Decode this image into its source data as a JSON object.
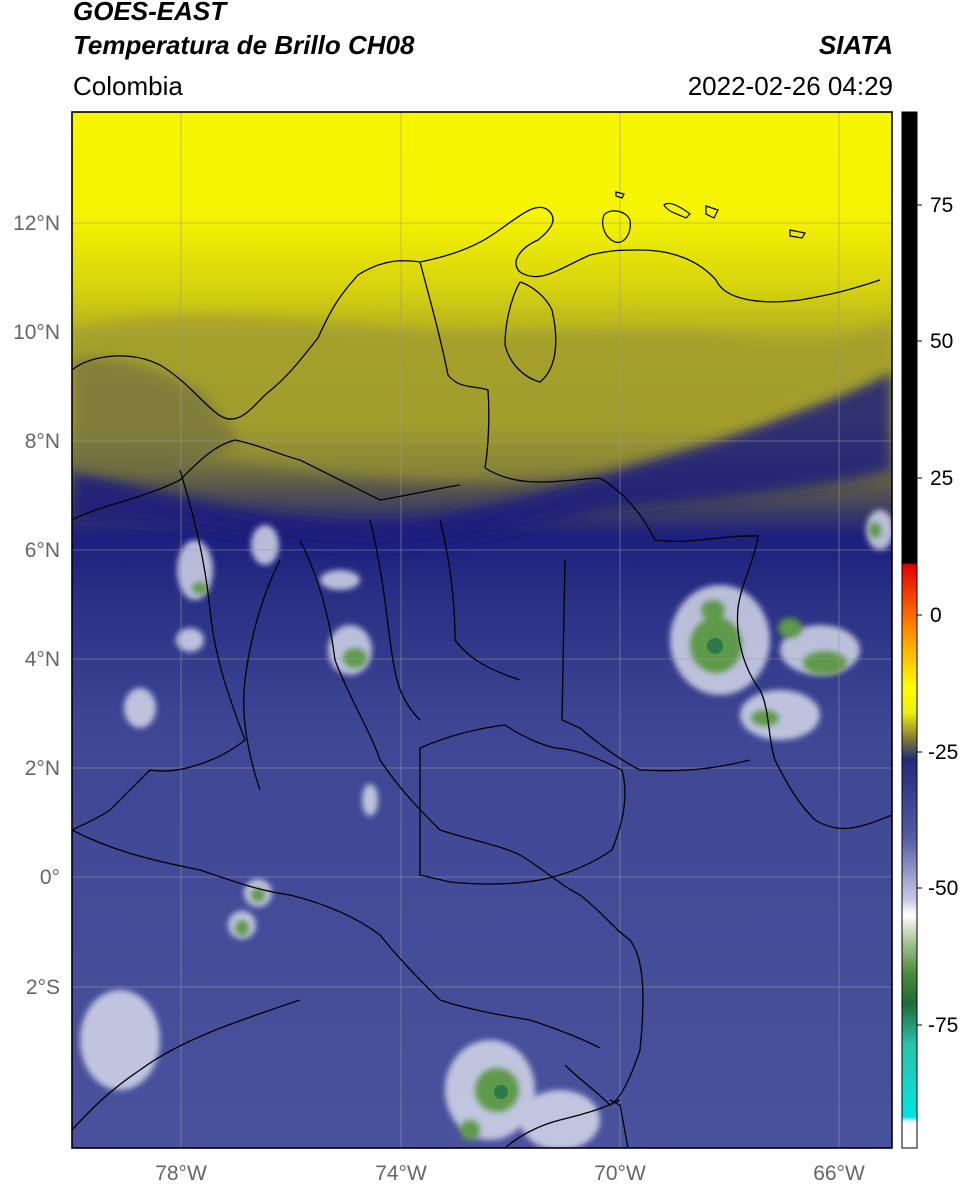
{
  "header": {
    "satellite": "GOES-EAST",
    "product": "Temperatura de Brillo CH08",
    "region": "Colombia",
    "source": "SIATA",
    "datetime": "2022-02-26 04:29"
  },
  "map": {
    "lon_ticks": [
      "78°W",
      "74°W",
      "70°W",
      "66°W"
    ],
    "lat_ticks": [
      "12°N",
      "10°N",
      "8°N",
      "6°N",
      "4°N",
      "2°N",
      "0°",
      "2°S"
    ],
    "colors": {
      "cold_band": "#1c1f7e",
      "mid": "#3d4594",
      "dry": "#f6f304",
      "convective_green": "#4f8d3e",
      "border": "#000000"
    }
  },
  "colorbar": {
    "ticks": [
      "75",
      "50",
      "25",
      "0",
      "-25",
      "-50",
      "-75"
    ],
    "palette": [
      "#000000",
      "#e50000",
      "#ff9a00",
      "#ffff00",
      "#807a35",
      "#232a7c",
      "#9a9ece",
      "#ffffff",
      "#6aa060",
      "#1f6b3a",
      "#29c2a8",
      "#00e5e5",
      "#ffffff"
    ]
  }
}
